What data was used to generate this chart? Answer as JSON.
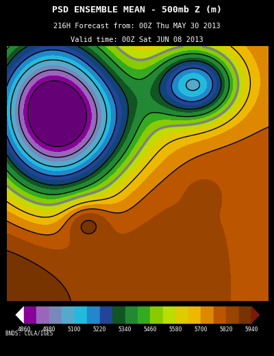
{
  "title_line1": "PSD ENSEMBLE MEAN - 500mb Z (m)",
  "title_line2": "216H Forecast from: 00Z Thu MAY 30 2013",
  "title_line3": "Valid time: 00Z Sat JUN 08 2013",
  "attribution": "BNDS: COLA/IGES",
  "colorbar_ticks": [
    4860,
    4980,
    5100,
    5220,
    5340,
    5460,
    5580,
    5700,
    5820,
    5940
  ],
  "fill_levels": [
    4800,
    4860,
    4920,
    4980,
    5040,
    5100,
    5160,
    5220,
    5280,
    5340,
    5400,
    5460,
    5520,
    5580,
    5640,
    5700,
    5760,
    5820,
    5880,
    5940,
    6100
  ],
  "fill_colors": [
    "#660077",
    "#880099",
    "#9966BB",
    "#7788BB",
    "#55AACC",
    "#22BBDD",
    "#2288CC",
    "#224499",
    "#114477",
    "#115522",
    "#228833",
    "#33AA22",
    "#88CC00",
    "#BBDD00",
    "#DDCC00",
    "#EEB800",
    "#DD8800",
    "#BB5500",
    "#994400",
    "#773300"
  ],
  "cb_colors": [
    "#880099",
    "#9966BB",
    "#7788BB",
    "#55AACC",
    "#22BBDD",
    "#2288CC",
    "#224499",
    "#115522",
    "#228833",
    "#33AA22",
    "#88CC00",
    "#BBDD00",
    "#DDCC00",
    "#EEB800",
    "#DD8800",
    "#BB5500",
    "#994400",
    "#773300"
  ],
  "black_bg": "#000000",
  "white": "#ffffff",
  "contour_levels": [
    4860,
    4980,
    5100,
    5220,
    5340,
    5460,
    5580,
    5700,
    5820,
    5940
  ],
  "gray_contour_level": 5580,
  "label_levels": [
    5460,
    5580,
    5700,
    5820,
    5940
  ]
}
